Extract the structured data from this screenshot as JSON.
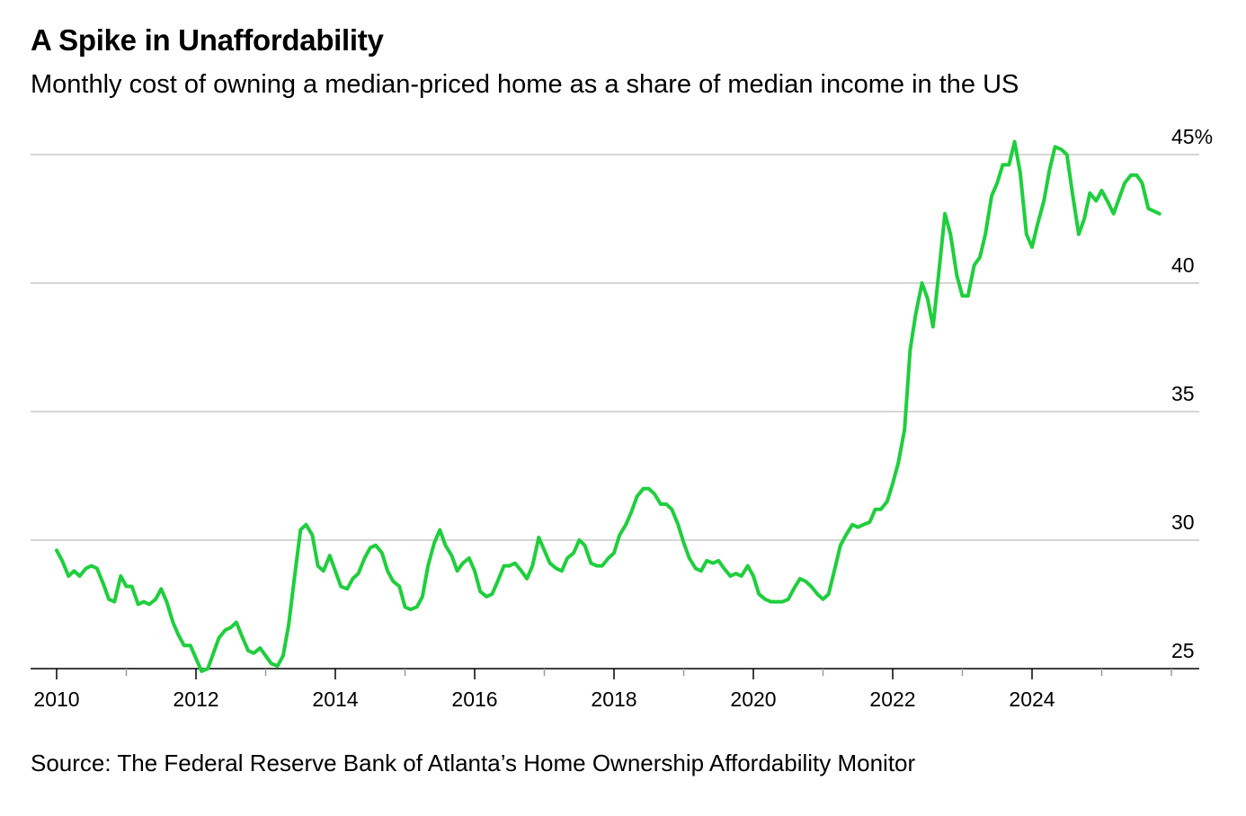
{
  "chart_data": {
    "type": "line",
    "title": "A Spike in Unaffordability",
    "subtitle": "Monthly cost of owning a median-priced home as a share of median income in the US",
    "source": "Source: The Federal Reserve Bank of Atlanta’s Home Ownership Affordability Monitor",
    "xlabel": "",
    "ylabel": "",
    "xlim": [
      2010,
      2026.0
    ],
    "ylim": [
      25,
      45
    ],
    "y_ticks": [
      25,
      30,
      35,
      40,
      45
    ],
    "y_tick_labels": [
      "25",
      "30",
      "35",
      "40",
      "45%"
    ],
    "x_ticks": [
      2010,
      2012,
      2014,
      2016,
      2018,
      2020,
      2022,
      2024
    ],
    "x_tick_labels": [
      "2010",
      "2012",
      "2014",
      "2016",
      "2018",
      "2020",
      "2022",
      "2024"
    ],
    "grid": "horizontal",
    "line_color": "#1ecf3c",
    "series": [
      {
        "name": "Share of median income",
        "x": [
          2010.0,
          2010.08,
          2010.17,
          2010.25,
          2010.33,
          2010.42,
          2010.5,
          2010.58,
          2010.67,
          2010.75,
          2010.83,
          2010.92,
          2011.0,
          2011.08,
          2011.17,
          2011.25,
          2011.33,
          2011.42,
          2011.5,
          2011.58,
          2011.67,
          2011.75,
          2011.83,
          2011.92,
          2012.0,
          2012.08,
          2012.17,
          2012.25,
          2012.33,
          2012.42,
          2012.5,
          2012.58,
          2012.67,
          2012.75,
          2012.83,
          2012.92,
          2013.0,
          2013.08,
          2013.17,
          2013.25,
          2013.33,
          2013.42,
          2013.5,
          2013.58,
          2013.67,
          2013.75,
          2013.83,
          2013.92,
          2014.0,
          2014.08,
          2014.17,
          2014.25,
          2014.33,
          2014.42,
          2014.5,
          2014.58,
          2014.67,
          2014.75,
          2014.83,
          2014.92,
          2015.0,
          2015.08,
          2015.17,
          2015.25,
          2015.33,
          2015.42,
          2015.5,
          2015.58,
          2015.67,
          2015.75,
          2015.83,
          2015.92,
          2016.0,
          2016.08,
          2016.17,
          2016.25,
          2016.33,
          2016.42,
          2016.5,
          2016.58,
          2016.67,
          2016.75,
          2016.83,
          2016.92,
          2017.0,
          2017.08,
          2017.17,
          2017.25,
          2017.33,
          2017.42,
          2017.5,
          2017.58,
          2017.67,
          2017.75,
          2017.83,
          2017.92,
          2018.0,
          2018.08,
          2018.17,
          2018.25,
          2018.33,
          2018.42,
          2018.5,
          2018.58,
          2018.67,
          2018.75,
          2018.83,
          2018.92,
          2019.0,
          2019.08,
          2019.17,
          2019.25,
          2019.33,
          2019.42,
          2019.5,
          2019.58,
          2019.67,
          2019.75,
          2019.83,
          2019.92,
          2020.0,
          2020.08,
          2020.17,
          2020.25,
          2020.33,
          2020.42,
          2020.5,
          2020.58,
          2020.67,
          2020.75,
          2020.83,
          2020.92,
          2021.0,
          2021.08,
          2021.17,
          2021.25,
          2021.33,
          2021.42,
          2021.5,
          2021.58,
          2021.67,
          2021.75,
          2021.83,
          2021.92,
          2022.0,
          2022.08,
          2022.17,
          2022.25,
          2022.33,
          2022.42,
          2022.5,
          2022.58,
          2022.67,
          2022.75,
          2022.83,
          2022.92,
          2023.0,
          2023.08,
          2023.17,
          2023.25,
          2023.33,
          2023.42,
          2023.5,
          2023.58,
          2023.67,
          2023.75,
          2023.83,
          2023.92,
          2024.0,
          2024.08,
          2024.17,
          2024.25,
          2024.33,
          2024.42,
          2024.5,
          2024.58,
          2024.67,
          2024.75,
          2024.83,
          2024.92,
          2025.0,
          2025.08,
          2025.17,
          2025.25,
          2025.33,
          2025.42,
          2025.5,
          2025.58,
          2025.67,
          2025.75,
          2025.83
        ],
        "values": [
          29.6,
          29.2,
          28.6,
          28.8,
          28.6,
          28.9,
          29.0,
          28.9,
          28.3,
          27.7,
          27.6,
          28.6,
          28.2,
          28.2,
          27.5,
          27.6,
          27.5,
          27.7,
          28.1,
          27.6,
          26.8,
          26.3,
          25.9,
          25.9,
          25.4,
          24.9,
          25.0,
          25.6,
          26.2,
          26.5,
          26.6,
          26.8,
          26.2,
          25.7,
          25.6,
          25.8,
          25.5,
          25.2,
          25.1,
          25.5,
          26.7,
          28.7,
          30.4,
          30.6,
          30.2,
          29.0,
          28.8,
          29.4,
          28.8,
          28.2,
          28.1,
          28.5,
          28.7,
          29.3,
          29.7,
          29.8,
          29.5,
          28.8,
          28.4,
          28.2,
          27.4,
          27.3,
          27.4,
          27.8,
          29.0,
          29.9,
          30.4,
          29.8,
          29.4,
          28.8,
          29.1,
          29.3,
          28.8,
          28.0,
          27.8,
          27.9,
          28.4,
          29.0,
          29.0,
          29.1,
          28.8,
          28.5,
          29.0,
          30.1,
          29.6,
          29.1,
          28.9,
          28.8,
          29.3,
          29.5,
          30.0,
          29.8,
          29.1,
          29.0,
          29.0,
          29.3,
          29.5,
          30.2,
          30.6,
          31.1,
          31.7,
          32.0,
          32.0,
          31.8,
          31.4,
          31.4,
          31.2,
          30.6,
          29.9,
          29.3,
          28.9,
          28.8,
          29.2,
          29.1,
          29.2,
          28.9,
          28.6,
          28.7,
          28.6,
          29.0,
          28.6,
          27.9,
          27.7,
          27.6,
          27.6,
          27.6,
          27.7,
          28.1,
          28.5,
          28.4,
          28.2,
          27.9,
          27.7,
          27.9,
          28.9,
          29.8,
          30.2,
          30.6,
          30.5,
          30.6,
          30.7,
          31.2,
          31.2,
          31.5,
          32.2,
          33.0,
          34.3,
          37.4,
          38.8,
          40.0,
          39.4,
          38.3,
          40.6,
          42.7,
          41.9,
          40.3,
          39.5,
          39.5,
          40.7,
          41.0,
          41.9,
          43.4,
          43.9,
          44.6,
          44.6,
          45.5,
          44.3,
          41.9,
          41.4,
          42.3,
          43.2,
          44.4,
          45.3,
          45.2,
          45.0,
          43.5,
          41.9,
          42.5,
          43.5,
          43.2,
          43.6,
          43.2,
          42.7,
          43.3,
          43.9,
          44.2,
          44.2,
          43.9,
          42.9,
          42.8,
          42.7
        ]
      }
    ]
  }
}
